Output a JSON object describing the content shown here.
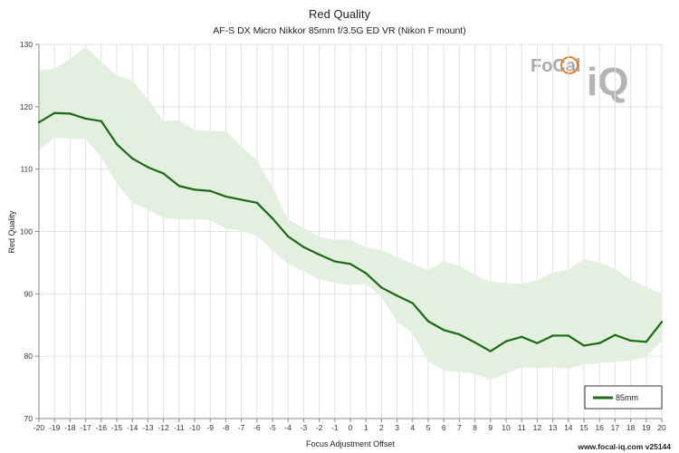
{
  "chart_data": {
    "type": "line",
    "title": "Red Quality",
    "subtitle": "AF-S DX Micro Nikkor 85mm f/3.5G ED VR (Nikon F mount)",
    "xlabel": "Focus Adjustment Offset",
    "ylabel": "Red Quality",
    "xlim": [
      -20,
      20
    ],
    "ylim": [
      70,
      130
    ],
    "yticks": [
      70,
      80,
      90,
      100,
      110,
      120,
      130
    ],
    "grid": true,
    "legend_position": "bottom-right",
    "x": [
      -20,
      -19,
      -18,
      -17,
      -16,
      -15,
      -14,
      -13,
      -12,
      -11,
      -10,
      -9,
      -8,
      -7,
      -6,
      -5,
      -4,
      -3,
      -2,
      -1,
      0,
      1,
      2,
      3,
      4,
      5,
      6,
      7,
      8,
      9,
      10,
      11,
      12,
      13,
      14,
      15,
      16,
      17,
      18,
      19,
      20
    ],
    "series": [
      {
        "name": "85mm",
        "color": "#1a6b12",
        "values": [
          117.5,
          119.0,
          118.9,
          118.1,
          117.7,
          114.0,
          111.7,
          110.3,
          109.3,
          107.3,
          106.7,
          106.5,
          105.6,
          105.1,
          104.6,
          102.1,
          99.2,
          97.5,
          96.3,
          95.2,
          94.8,
          93.3,
          91.0,
          89.7,
          88.5,
          85.6,
          84.2,
          83.5,
          82.2,
          80.8,
          82.4,
          83.1,
          82.1,
          83.3,
          83.3,
          81.7,
          82.1,
          83.4,
          82.5,
          82.3,
          85.5
        ],
        "band_upper": [
          125.8,
          126.1,
          127.7,
          129.6,
          127.2,
          125.0,
          124.2,
          121.2,
          117.7,
          117.8,
          116.3,
          116.1,
          116.1,
          113.6,
          111.4,
          107.1,
          101.9,
          100.6,
          99.1,
          98.7,
          98.7,
          97.4,
          97.0,
          95.9,
          94.8,
          93.8,
          95.2,
          94.5,
          93.0,
          92.0,
          91.7,
          91.6,
          92.2,
          93.4,
          93.9,
          95.5,
          95.0,
          94.0,
          92.3,
          91.1,
          90.1
        ],
        "band_lower": [
          113.0,
          115.0,
          114.9,
          114.8,
          111.9,
          107.7,
          104.6,
          103.5,
          102.2,
          101.9,
          102.0,
          101.8,
          100.5,
          100.1,
          99.3,
          96.9,
          94.8,
          93.6,
          92.3,
          91.8,
          91.4,
          91.6,
          89.5,
          85.6,
          83.6,
          79.2,
          77.7,
          77.5,
          77.2,
          76.2,
          77.2,
          78.2,
          78.1,
          78.2,
          78.0,
          78.7,
          78.9,
          79.1,
          79.3,
          79.9,
          82.5
        ]
      }
    ],
    "band_color": "#e3f0df"
  },
  "branding": {
    "logo_word": "FoCal",
    "logo_iq": "iQ",
    "credit": "www.focal-iq.com  v25144"
  }
}
